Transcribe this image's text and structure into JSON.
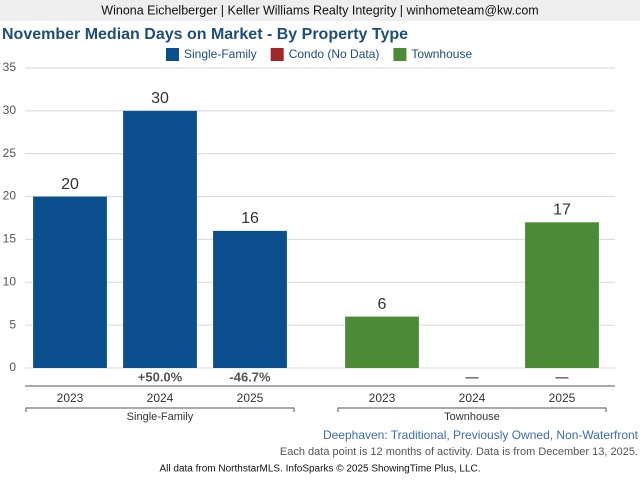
{
  "header": "Winona Eichelberger | Keller Williams Realty Integrity | winhometeam@kw.com",
  "chart_data": {
    "type": "bar",
    "title": "November Median Days on Market - By Property Type",
    "categories": [
      "2023",
      "2024",
      "2025",
      "2023",
      "2024",
      "2025"
    ],
    "groups": [
      "Single-Family",
      "Townhouse"
    ],
    "series": [
      {
        "name": "Single-Family",
        "color": "#0b4f8f",
        "values": [
          20,
          30,
          16,
          null,
          null,
          null
        ]
      },
      {
        "name": "Condo (No Data)",
        "color": "#a3262a",
        "values": [
          null,
          null,
          null,
          null,
          null,
          null
        ]
      },
      {
        "name": "Townhouse",
        "color": "#4b8b35",
        "values": [
          null,
          null,
          null,
          6,
          null,
          17
        ]
      }
    ],
    "change_labels": [
      null,
      "+50.0%",
      "-46.7%",
      null,
      "—",
      "—"
    ],
    "ylim": [
      0,
      35
    ],
    "yticks": [
      0,
      5,
      10,
      15,
      20,
      25,
      30,
      35
    ],
    "grid": true
  },
  "footer": {
    "subtitle": "Deephaven: Traditional, Previously Owned, Non-Waterfront",
    "note": "Each data point is 12 months of activity. Data is from December 13, 2025.",
    "credit": "All data from NorthstarMLS. InfoSparks © 2025 ShowingTime Plus, LLC."
  }
}
